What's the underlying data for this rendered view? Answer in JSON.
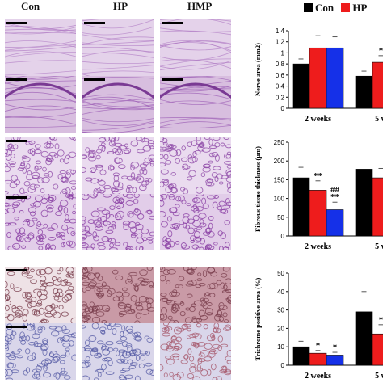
{
  "column_labels": [
    "Con",
    "HP",
    "HMP"
  ],
  "colors": {
    "Con": "#000000",
    "HP": "#ee1c1c",
    "HMP": "#1530e8",
    "he_light": "#d9c3e0",
    "he_dark": "#9a5ab4",
    "trichrome": "#7a3e4e",
    "trichrome_blue": "#5a5fa8"
  },
  "legend": [
    "Con",
    "HP"
  ],
  "chart_data": [
    {
      "type": "bar",
      "ylabel": "Nerve area (mm2)",
      "ylim": [
        0,
        1.4
      ],
      "yticks": [
        "0",
        "0.2",
        "0.4",
        "0.6",
        "0.8",
        "1",
        "1.2",
        "1.4"
      ],
      "categories": [
        "2 weeks",
        "5 w"
      ],
      "series": [
        {
          "name": "Con",
          "values": [
            0.8,
            0.58
          ],
          "errors": [
            0.09,
            0.09
          ]
        },
        {
          "name": "HP",
          "values": [
            1.09,
            0.83
          ],
          "errors": [
            0.22,
            0.12
          ]
        },
        {
          "name": "HMP",
          "values": [
            1.09,
            null
          ],
          "errors": [
            0.2,
            null
          ]
        }
      ],
      "annotations": [
        {
          "text": "*",
          "category": 1,
          "series": 1
        }
      ]
    },
    {
      "type": "bar",
      "ylabel": "Fibrous tissue thickness (μm)",
      "ylim": [
        0,
        250
      ],
      "yticks": [
        "0",
        "50",
        "100",
        "150",
        "200",
        "250"
      ],
      "categories": [
        "2 weeks",
        "5 w"
      ],
      "series": [
        {
          "name": "Con",
          "values": [
            155,
            178
          ],
          "errors": [
            28,
            30
          ]
        },
        {
          "name": "HP",
          "values": [
            122,
            155
          ],
          "errors": [
            25,
            25
          ]
        },
        {
          "name": "HMP",
          "values": [
            70,
            null
          ],
          "errors": [
            20,
            null
          ]
        }
      ],
      "annotations": [
        {
          "text": "**",
          "category": 0,
          "series": 1
        },
        {
          "text": "##",
          "category": 0,
          "series": 2,
          "row": 0
        },
        {
          "text": "**",
          "category": 0,
          "series": 2,
          "row": 1
        }
      ]
    },
    {
      "type": "bar",
      "ylabel": "Trichrome positive area (%)",
      "ylim": [
        0,
        50
      ],
      "yticks": [
        "0",
        "10",
        "20",
        "30",
        "40",
        "50"
      ],
      "categories": [
        "2 weeks",
        "5 w"
      ],
      "series": [
        {
          "name": "Con",
          "values": [
            10,
            29
          ],
          "errors": [
            3,
            11
          ]
        },
        {
          "name": "HP",
          "values": [
            6.5,
            17
          ],
          "errors": [
            1.5,
            5
          ]
        },
        {
          "name": "HMP",
          "values": [
            5.5,
            null
          ],
          "errors": [
            1.5,
            null
          ]
        }
      ],
      "annotations": [
        {
          "text": "*",
          "category": 0,
          "series": 1
        },
        {
          "text": "*",
          "category": 0,
          "series": 2
        },
        {
          "text": "*",
          "category": 1,
          "series": 1
        }
      ]
    }
  ]
}
